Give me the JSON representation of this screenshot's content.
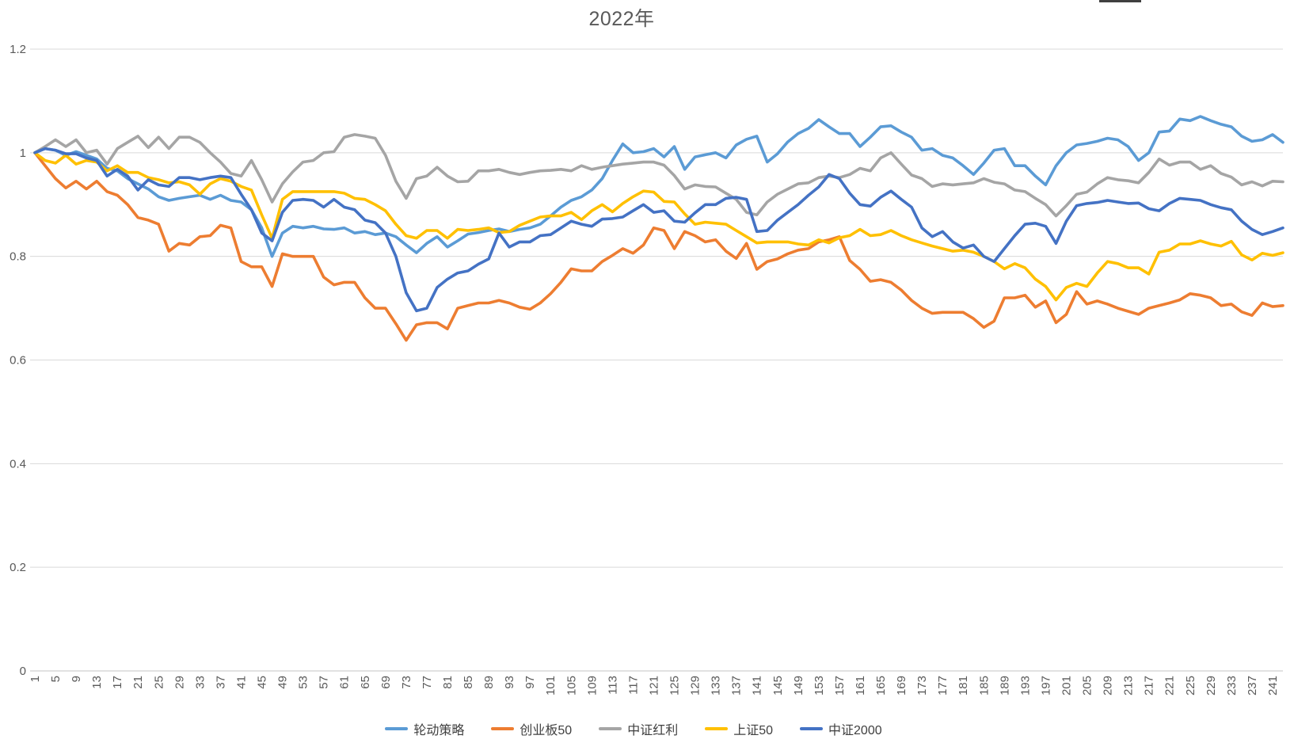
{
  "artifact_bar": {
    "color": "#404040"
  },
  "chart_data": {
    "type": "line",
    "title": "2022年",
    "xlabel": "",
    "ylabel": "",
    "legend_position": "bottom",
    "grid": true,
    "y_axis": {
      "range": [
        0,
        1.2
      ],
      "tick_labels": [
        "0",
        "0.2",
        "0.4",
        "0.6",
        "0.8",
        "1",
        "1.2"
      ],
      "tick_values": [
        0,
        0.2,
        0.4,
        0.6,
        0.8,
        1,
        1.2
      ]
    },
    "x_axis": {
      "range": [
        1,
        243
      ],
      "tick_labels": [
        "1",
        "5",
        "9",
        "13",
        "17",
        "21",
        "25",
        "29",
        "33",
        "37",
        "41",
        "45",
        "49",
        "53",
        "57",
        "61",
        "65",
        "69",
        "73",
        "77",
        "81",
        "85",
        "89",
        "93",
        "97",
        "101",
        "105",
        "109",
        "113",
        "117",
        "121",
        "125",
        "129",
        "133",
        "137",
        "141",
        "145",
        "149",
        "153",
        "157",
        "161",
        "165",
        "169",
        "173",
        "177",
        "181",
        "185",
        "189",
        "193",
        "197",
        "201",
        "205",
        "209",
        "213",
        "217",
        "221",
        "225",
        "229",
        "233",
        "237",
        "241"
      ]
    },
    "x_start": 1,
    "x_step": 2,
    "series": [
      {
        "name": "轮动策略",
        "color": "#5B9BD5",
        "values": [
          1.0,
          1.008,
          1.005,
          0.995,
          1.002,
          0.995,
          0.988,
          0.97,
          0.965,
          0.95,
          0.94,
          0.93,
          0.915,
          0.908,
          0.912,
          0.915,
          0.918,
          0.91,
          0.918,
          0.908,
          0.905,
          0.89,
          0.855,
          0.8,
          0.845,
          0.858,
          0.855,
          0.858,
          0.853,
          0.852,
          0.855,
          0.845,
          0.848,
          0.842,
          0.845,
          0.838,
          0.822,
          0.807,
          0.825,
          0.838,
          0.818,
          0.83,
          0.843,
          0.846,
          0.85,
          0.853,
          0.848,
          0.852,
          0.855,
          0.862,
          0.878,
          0.895,
          0.908,
          0.915,
          0.928,
          0.95,
          0.985,
          1.017,
          1.0,
          1.002,
          1.008,
          0.992,
          1.012,
          0.968,
          0.992,
          0.996,
          1.0,
          0.99,
          1.015,
          1.026,
          1.032,
          0.982,
          0.998,
          1.021,
          1.037,
          1.047,
          1.064,
          1.05,
          1.037,
          1.037,
          1.012,
          1.03,
          1.05,
          1.052,
          1.04,
          1.03,
          1.005,
          1.008,
          0.995,
          0.99,
          0.975,
          0.958,
          0.98,
          1.005,
          1.008,
          0.975,
          0.975,
          0.955,
          0.938,
          0.975,
          1.0,
          1.015,
          1.018,
          1.022,
          1.028,
          1.025,
          1.012,
          0.985,
          1.0,
          1.04,
          1.042,
          1.065,
          1.062,
          1.07,
          1.062,
          1.055,
          1.05,
          1.032,
          1.022,
          1.025,
          1.035,
          1.02
        ]
      },
      {
        "name": "创业板50",
        "color": "#ED7D31",
        "values": [
          1.0,
          0.975,
          0.95,
          0.932,
          0.945,
          0.93,
          0.945,
          0.925,
          0.918,
          0.9,
          0.875,
          0.87,
          0.862,
          0.81,
          0.825,
          0.822,
          0.838,
          0.84,
          0.86,
          0.855,
          0.79,
          0.78,
          0.78,
          0.742,
          0.805,
          0.8,
          0.8,
          0.8,
          0.76,
          0.745,
          0.75,
          0.75,
          0.72,
          0.7,
          0.7,
          0.67,
          0.638,
          0.668,
          0.672,
          0.672,
          0.66,
          0.7,
          0.705,
          0.71,
          0.71,
          0.715,
          0.71,
          0.702,
          0.698,
          0.71,
          0.728,
          0.75,
          0.776,
          0.772,
          0.772,
          0.79,
          0.802,
          0.815,
          0.806,
          0.822,
          0.855,
          0.85,
          0.815,
          0.848,
          0.84,
          0.828,
          0.832,
          0.81,
          0.796,
          0.825,
          0.775,
          0.79,
          0.795,
          0.805,
          0.812,
          0.815,
          0.828,
          0.832,
          0.838,
          0.792,
          0.775,
          0.752,
          0.755,
          0.75,
          0.735,
          0.715,
          0.7,
          0.69,
          0.692,
          0.692,
          0.692,
          0.68,
          0.663,
          0.675,
          0.72,
          0.72,
          0.725,
          0.702,
          0.714,
          0.672,
          0.688,
          0.732,
          0.708,
          0.714,
          0.708,
          0.7,
          0.694,
          0.688,
          0.7,
          0.705,
          0.71,
          0.716,
          0.728,
          0.725,
          0.72,
          0.705,
          0.708,
          0.693,
          0.686,
          0.71,
          0.703,
          0.705
        ]
      },
      {
        "name": "中证红利",
        "color": "#A5A5A5",
        "values": [
          1.0,
          1.012,
          1.025,
          1.012,
          1.025,
          1.0,
          1.005,
          0.978,
          1.008,
          1.02,
          1.032,
          1.01,
          1.03,
          1.008,
          1.03,
          1.03,
          1.02,
          1.0,
          0.982,
          0.96,
          0.955,
          0.985,
          0.948,
          0.905,
          0.94,
          0.963,
          0.982,
          0.985,
          1.0,
          1.002,
          1.03,
          1.035,
          1.032,
          1.028,
          0.995,
          0.945,
          0.912,
          0.95,
          0.955,
          0.972,
          0.955,
          0.944,
          0.945,
          0.965,
          0.965,
          0.968,
          0.962,
          0.958,
          0.962,
          0.965,
          0.966,
          0.968,
          0.965,
          0.975,
          0.968,
          0.972,
          0.975,
          0.978,
          0.98,
          0.982,
          0.982,
          0.976,
          0.956,
          0.93,
          0.938,
          0.935,
          0.934,
          0.922,
          0.91,
          0.885,
          0.88,
          0.905,
          0.92,
          0.93,
          0.94,
          0.942,
          0.952,
          0.955,
          0.952,
          0.958,
          0.97,
          0.965,
          0.99,
          1.0,
          0.978,
          0.957,
          0.95,
          0.935,
          0.94,
          0.938,
          0.94,
          0.942,
          0.95,
          0.943,
          0.94,
          0.928,
          0.925,
          0.912,
          0.9,
          0.878,
          0.898,
          0.92,
          0.924,
          0.94,
          0.952,
          0.948,
          0.946,
          0.942,
          0.962,
          0.988,
          0.976,
          0.982,
          0.982,
          0.968,
          0.975,
          0.96,
          0.953,
          0.938,
          0.944,
          0.936,
          0.945,
          0.944
        ]
      },
      {
        "name": "上证50",
        "color": "#FFC000",
        "values": [
          1.0,
          0.985,
          0.98,
          0.995,
          0.978,
          0.985,
          0.982,
          0.965,
          0.975,
          0.962,
          0.962,
          0.952,
          0.948,
          0.942,
          0.944,
          0.938,
          0.92,
          0.94,
          0.95,
          0.945,
          0.935,
          0.928,
          0.88,
          0.835,
          0.91,
          0.925,
          0.925,
          0.925,
          0.925,
          0.925,
          0.922,
          0.912,
          0.91,
          0.9,
          0.888,
          0.862,
          0.84,
          0.835,
          0.85,
          0.85,
          0.835,
          0.852,
          0.85,
          0.852,
          0.855,
          0.846,
          0.848,
          0.86,
          0.868,
          0.876,
          0.878,
          0.878,
          0.885,
          0.871,
          0.888,
          0.9,
          0.886,
          0.902,
          0.915,
          0.926,
          0.924,
          0.906,
          0.905,
          0.882,
          0.862,
          0.866,
          0.864,
          0.862,
          0.85,
          0.838,
          0.826,
          0.828,
          0.828,
          0.828,
          0.824,
          0.822,
          0.832,
          0.826,
          0.836,
          0.84,
          0.852,
          0.84,
          0.842,
          0.85,
          0.84,
          0.832,
          0.826,
          0.82,
          0.815,
          0.81,
          0.812,
          0.808,
          0.8,
          0.79,
          0.776,
          0.786,
          0.778,
          0.756,
          0.742,
          0.716,
          0.74,
          0.748,
          0.742,
          0.768,
          0.79,
          0.786,
          0.778,
          0.778,
          0.766,
          0.808,
          0.812,
          0.824,
          0.824,
          0.83,
          0.824,
          0.82,
          0.829,
          0.803,
          0.793,
          0.806,
          0.802,
          0.807
        ]
      },
      {
        "name": "中证2000",
        "color": "#4472C4",
        "values": [
          1.0,
          1.008,
          1.005,
          0.998,
          0.998,
          0.99,
          0.985,
          0.955,
          0.968,
          0.955,
          0.928,
          0.948,
          0.938,
          0.935,
          0.952,
          0.952,
          0.948,
          0.952,
          0.955,
          0.952,
          0.92,
          0.89,
          0.845,
          0.83,
          0.885,
          0.908,
          0.91,
          0.908,
          0.895,
          0.91,
          0.895,
          0.89,
          0.87,
          0.865,
          0.845,
          0.8,
          0.73,
          0.695,
          0.7,
          0.74,
          0.756,
          0.768,
          0.772,
          0.785,
          0.795,
          0.845,
          0.818,
          0.828,
          0.828,
          0.84,
          0.842,
          0.855,
          0.868,
          0.862,
          0.858,
          0.872,
          0.873,
          0.876,
          0.888,
          0.9,
          0.885,
          0.888,
          0.868,
          0.866,
          0.884,
          0.9,
          0.9,
          0.912,
          0.914,
          0.91,
          0.848,
          0.85,
          0.87,
          0.885,
          0.9,
          0.918,
          0.934,
          0.958,
          0.95,
          0.922,
          0.9,
          0.897,
          0.914,
          0.926,
          0.91,
          0.895,
          0.855,
          0.838,
          0.848,
          0.828,
          0.816,
          0.822,
          0.8,
          0.79,
          0.815,
          0.84,
          0.862,
          0.864,
          0.858,
          0.825,
          0.868,
          0.898,
          0.902,
          0.904,
          0.908,
          0.905,
          0.902,
          0.903,
          0.892,
          0.888,
          0.902,
          0.912,
          0.91,
          0.908,
          0.9,
          0.894,
          0.89,
          0.868,
          0.852,
          0.842,
          0.848,
          0.855
        ]
      }
    ]
  }
}
